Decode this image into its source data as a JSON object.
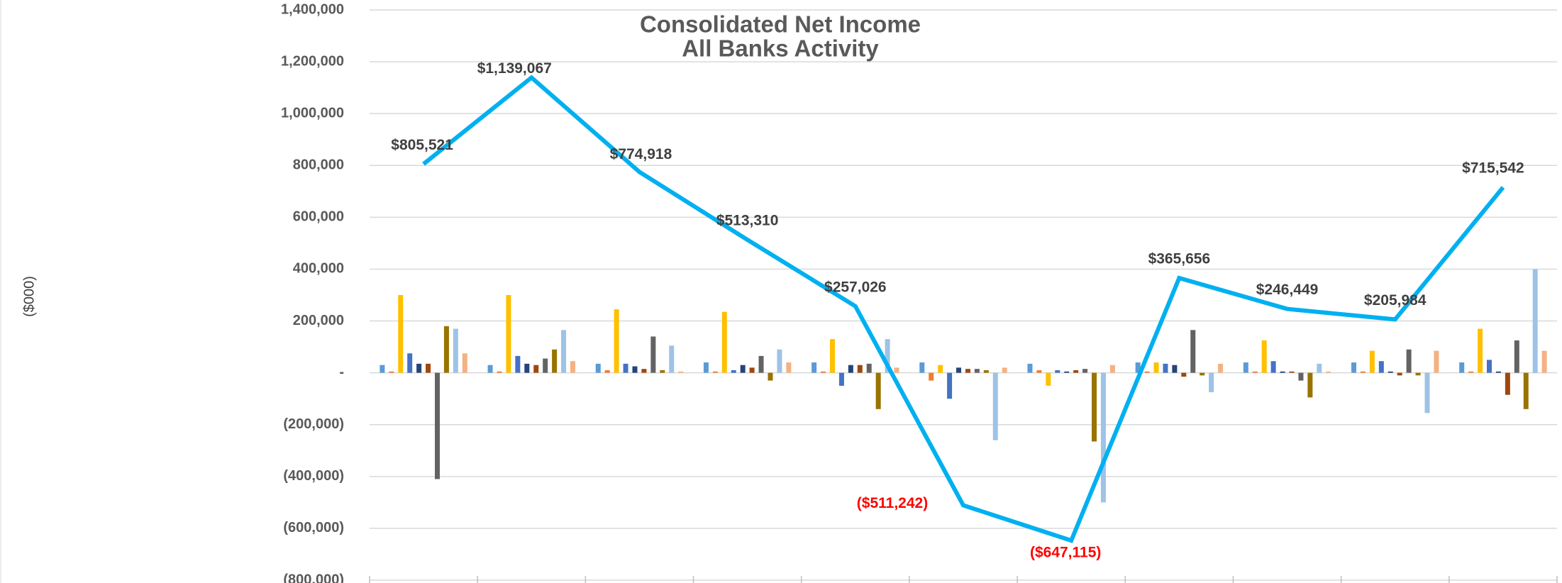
{
  "chart_data": {
    "type": "bar_line",
    "title": "Consolidated Net Income",
    "subtitle": "All Banks Activity",
    "y_label": "($000)",
    "categories": [
      null,
      null,
      null,
      null,
      null,
      null,
      null,
      null,
      null,
      null,
      null
    ],
    "ylim": [
      -800000,
      1400000
    ],
    "yticks": [
      {
        "value": -800000,
        "label": "(800,000)"
      },
      {
        "value": -600000,
        "label": "(600,000)"
      },
      {
        "value": -400000,
        "label": "(400,000)"
      },
      {
        "value": -200000,
        "label": "(200,000)"
      },
      {
        "value": 0,
        "label": "-"
      },
      {
        "value": 200000,
        "label": "200,000"
      },
      {
        "value": 400000,
        "label": "400,000"
      },
      {
        "value": 600000,
        "label": "600,000"
      },
      {
        "value": 800000,
        "label": "800,000"
      },
      {
        "value": 1000000,
        "label": "1,000,000"
      },
      {
        "value": 1200000,
        "label": "1,200,000"
      },
      {
        "value": 1400000,
        "label": "1,400,000"
      }
    ],
    "grid": true,
    "series": [
      {
        "color": "#5b9bd5",
        "values": [
          30000,
          30000,
          35000,
          40000,
          40000,
          40000,
          35000,
          40000,
          40000,
          40000,
          40000
        ]
      },
      {
        "color": "#ed7d31",
        "values": [
          5000,
          5000,
          10000,
          5000,
          5000,
          -30000,
          10000,
          5000,
          5000,
          5000,
          5000
        ]
      },
      {
        "color": "#ffc000",
        "values": [
          300000,
          300000,
          245000,
          235000,
          130000,
          30000,
          -50000,
          40000,
          125000,
          85000,
          170000
        ]
      },
      {
        "color": "#4472c4",
        "values": [
          75000,
          65000,
          35000,
          10000,
          -50000,
          -100000,
          10000,
          35000,
          45000,
          45000,
          50000
        ]
      },
      {
        "color": "#264478",
        "values": [
          35000,
          35000,
          25000,
          30000,
          30000,
          20000,
          5000,
          30000,
          5000,
          5000,
          5000
        ]
      },
      {
        "color": "#9e480e",
        "values": [
          35000,
          30000,
          15000,
          20000,
          30000,
          15000,
          10000,
          -15000,
          5000,
          -10000,
          -85000
        ]
      },
      {
        "color": "#636363",
        "values": [
          -410000,
          55000,
          140000,
          65000,
          35000,
          15000,
          15000,
          165000,
          -30000,
          90000,
          125000
        ]
      },
      {
        "color": "#997300",
        "values": [
          180000,
          90000,
          10000,
          -30000,
          -140000,
          10000,
          -265000,
          -10000,
          -95000,
          -10000,
          -140000
        ]
      },
      {
        "color": "#9dc3e6",
        "values": [
          170000,
          165000,
          105000,
          90000,
          130000,
          -260000,
          -500000,
          -75000,
          35000,
          -155000,
          400000
        ]
      },
      {
        "color": "#f4b183",
        "values": [
          75000,
          45000,
          5000,
          40000,
          20000,
          20000,
          30000,
          35000,
          5000,
          85000,
          85000
        ]
      },
      {
        "type": "line",
        "color": "#00b0f0",
        "values": [
          805521,
          1139067,
          774918,
          513310,
          257026,
          -511242,
          -647115,
          365656,
          246449,
          205984,
          715542
        ],
        "value_labels": [
          "$805,521",
          "$1,139,067",
          "$774,918",
          "$513,310",
          "$257,026",
          "($511,242)",
          "($647,115)",
          "$365,656",
          "$246,449",
          "$205,984",
          "$715,542"
        ]
      }
    ]
  }
}
